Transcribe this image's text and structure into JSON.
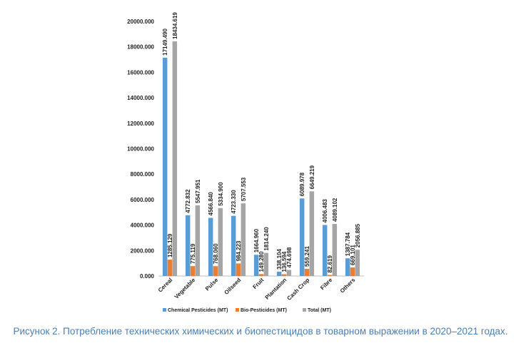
{
  "chart_data": {
    "type": "bar",
    "categories": [
      "Cereal",
      "Vegetable",
      "Pulse",
      "Oilseed",
      "Fruit",
      "Plantation",
      "Cash Crop",
      "Fibre",
      "Others"
    ],
    "series": [
      {
        "name": "Chemical Pesticides (MT)",
        "color": "#5b9bd5",
        "values": [
          17149.49,
          4772.832,
          4566.84,
          4723.33,
          1664.96,
          338.104,
          6089.978,
          4006.483,
          1387.784
        ],
        "labels": [
          "17149.490",
          "4772.832",
          "4566.840",
          "4723.330",
          "1664.960",
          "338.104",
          "6089.978",
          "4006.483",
          "1387.784"
        ]
      },
      {
        "name": "Bio-Pesticides (MT)",
        "color": "#ed7d31",
        "values": [
          1285.129,
          775.119,
          768.06,
          984.223,
          149.28,
          136.594,
          559.241,
          82.619,
          669.101
        ],
        "labels": [
          "1285.129",
          "775.119",
          "768.060",
          "984.223",
          "149.280",
          "136.594",
          "559.241",
          "82.619",
          "669.101"
        ]
      },
      {
        "name": "Total (MT)",
        "color": "#a5a5a5",
        "values": [
          18434.619,
          5547.951,
          5334.9,
          5707.553,
          1814.24,
          474.698,
          6649.219,
          4089.102,
          2056.885
        ],
        "labels": [
          "18434.619",
          "5547.951",
          "5334.900",
          "5707.553",
          "1814.240",
          "474.698",
          "6649.219",
          "4089.102",
          "2056.885"
        ]
      }
    ],
    "yticks": [
      "0.000",
      "2000.000",
      "4000.000",
      "6000.000",
      "8000.000",
      "10000.000",
      "12000.000",
      "14000.000",
      "16000.000",
      "18000.000",
      "20000.000"
    ],
    "ylim": [
      0,
      20000
    ],
    "grid": false,
    "legend_position": "bottom"
  },
  "caption": "Рисунок 2. Потребление технических химических и биопестицидов в товарном выражении в 2020–2021 годах."
}
